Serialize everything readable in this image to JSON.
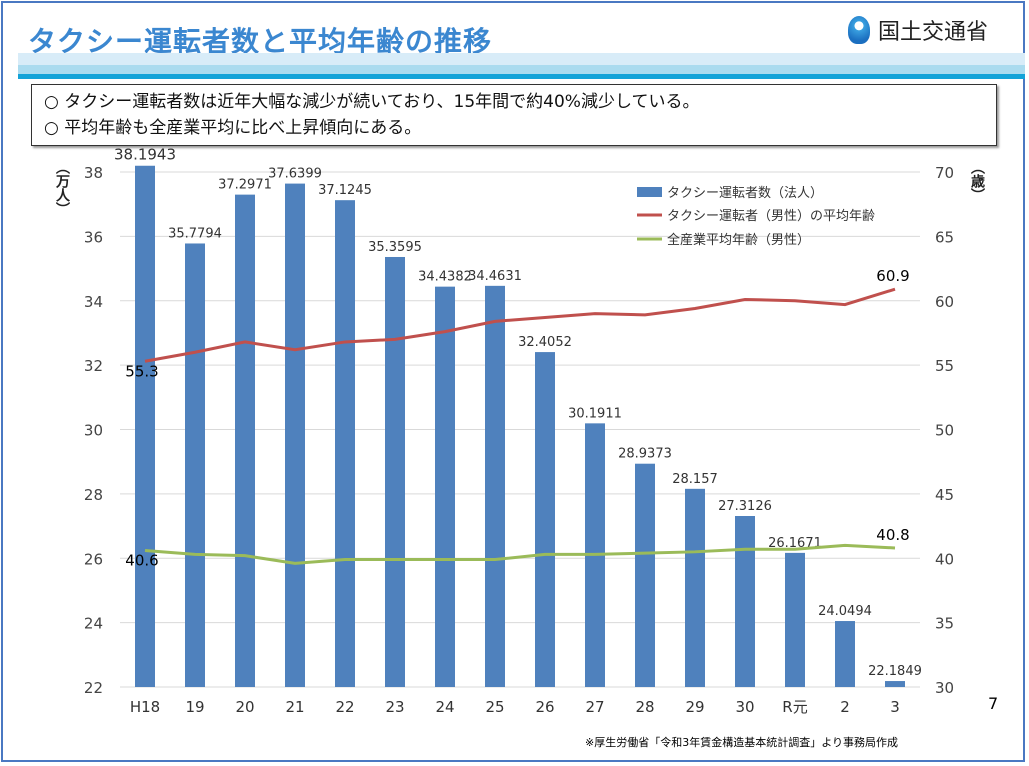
{
  "header": {
    "title": "タクシー運転者数と平均年齢の推移",
    "org": "国土交通省"
  },
  "summary": [
    "○ タクシー運転者数は近年大幅な減少が続いており、15年間で約40%減少している。",
    "○ 平均年齢も全産業平均に比べ上昇傾向にある。"
  ],
  "page_number": "7",
  "source": "※厚生労働省「令和3年賃金構造基本統計調査」より事務局作成",
  "chart_data": {
    "type": "bar+line",
    "categories": [
      "H18",
      "19",
      "20",
      "21",
      "22",
      "23",
      "24",
      "25",
      "26",
      "27",
      "28",
      "29",
      "30",
      "R元",
      "2",
      "3"
    ],
    "y_left": {
      "label": "（万人）",
      "range": [
        22,
        38
      ],
      "ticks": [
        22,
        24,
        26,
        28,
        30,
        32,
        34,
        36,
        38
      ]
    },
    "y_right": {
      "label": "（歳）",
      "range": [
        30,
        70
      ],
      "ticks": [
        30,
        35,
        40,
        45,
        50,
        55,
        60,
        65,
        70
      ]
    },
    "series": [
      {
        "name": "タクシー運転者数（法人）",
        "type": "bar",
        "axis": "left",
        "color": "#4f81bd",
        "values": [
          38.1943,
          35.7794,
          37.2971,
          37.6399,
          37.1245,
          35.3595,
          34.4382,
          34.4631,
          32.4052,
          30.1911,
          28.9373,
          28.157,
          27.3126,
          26.1671,
          24.0494,
          22.1849
        ],
        "labels": [
          "38.1943",
          "35.7794",
          "37.2971",
          "37.6399",
          "37.1245",
          "35.3595",
          "34.4382",
          "34.4631",
          "32.4052",
          "30.1911",
          "28.9373",
          "28.157",
          "27.3126",
          "26.1671",
          "24.0494",
          "22.1849"
        ]
      },
      {
        "name": "タクシー運転者（男性）の平均年齢",
        "type": "line",
        "axis": "right",
        "color": "#c0504d",
        "values": [
          55.3,
          56.0,
          56.8,
          56.2,
          56.8,
          57.0,
          57.6,
          58.4,
          58.7,
          59.0,
          58.9,
          59.4,
          60.1,
          60.0,
          59.7,
          60.9
        ],
        "end_labels": [
          "55.3",
          "60.9"
        ]
      },
      {
        "name": "全産業平均年齢（男性）",
        "type": "line",
        "axis": "right",
        "color": "#9bbb59",
        "values": [
          40.6,
          40.3,
          40.2,
          39.6,
          39.9,
          39.9,
          39.9,
          39.9,
          40.3,
          40.3,
          40.4,
          40.5,
          40.7,
          40.7,
          41.0,
          40.8
        ],
        "end_labels": [
          "40.6",
          "40.8"
        ]
      }
    ],
    "legend": "top-right",
    "grid": true
  }
}
